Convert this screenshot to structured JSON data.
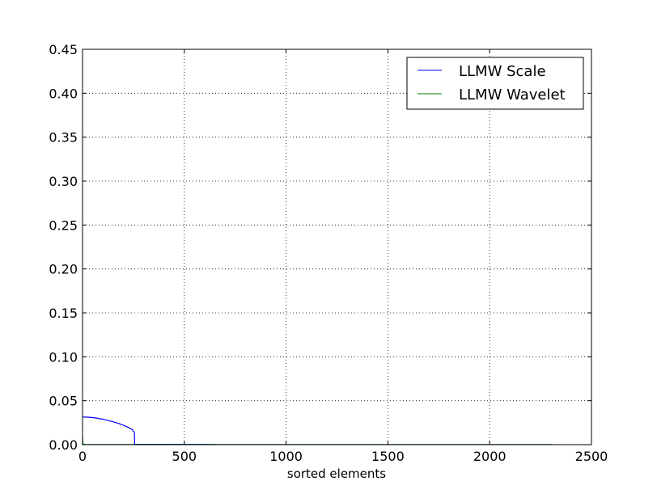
{
  "chart_data": {
    "type": "line",
    "title": "",
    "xlabel": "sorted elements",
    "ylabel": "",
    "xlim": [
      0,
      2500
    ],
    "ylim": [
      0,
      0.45
    ],
    "x_ticks": [
      0,
      500,
      1000,
      1500,
      2000,
      2500
    ],
    "x_tick_labels": [
      "0",
      "500",
      "1000",
      "1500",
      "2000",
      "2500"
    ],
    "y_ticks": [
      0,
      0.05,
      0.1,
      0.15,
      0.2,
      0.25,
      0.3,
      0.35,
      0.4,
      0.45
    ],
    "y_tick_labels": [
      "0.00",
      "0.05",
      "0.10",
      "0.15",
      "0.20",
      "0.25",
      "0.30",
      "0.35",
      "0.40",
      "0.45"
    ],
    "grid": true,
    "legend_position": "top-right",
    "series": [
      {
        "name": "LLMW Scale",
        "color": "#0000ff",
        "x": [
          0,
          25,
          50,
          75,
          100,
          125,
          150,
          175,
          200,
          225,
          245,
          255,
          256,
          400,
          600,
          650
        ],
        "y": [
          0.0315,
          0.0313,
          0.0308,
          0.03,
          0.0289,
          0.0275,
          0.026,
          0.0243,
          0.0222,
          0.0196,
          0.017,
          0.0135,
          0.0005,
          0.0004,
          0.0003,
          0.0
        ]
      },
      {
        "name": "LLMW Wavelet",
        "color": "#008000",
        "x": [
          0,
          1,
          2,
          4,
          10,
          50,
          500,
          1000,
          1500,
          2000,
          2300,
          2310
        ],
        "y": [
          0.008,
          0.004,
          0.0015,
          0.0006,
          0.0003,
          0.0002,
          0.0001,
          0.0001,
          0.0001,
          0.0001,
          0.0001,
          0.0
        ]
      }
    ]
  }
}
